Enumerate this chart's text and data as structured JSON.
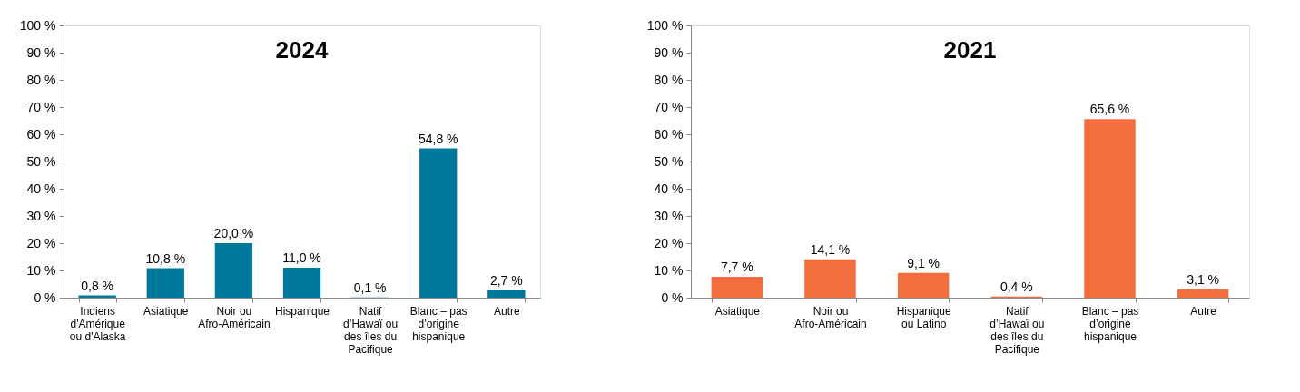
{
  "chart_data": [
    {
      "type": "bar",
      "title": "2024",
      "categories": [
        "Indiens d'Amérique ou d'Alaska",
        "Asiatique",
        "Noir ou Afro-Américain",
        "Hispanique",
        "Natif d’Hawaï ou des îles du Pacifique",
        "Blanc – pas d’origine hispanique",
        "Autre"
      ],
      "values": [
        0.8,
        10.8,
        20.0,
        11.0,
        0.1,
        54.8,
        2.7
      ],
      "color": "#00789c",
      "value_labels": [
        "0,8 %",
        "10,8 %",
        "20,0 %",
        "11,0 %",
        "0,1 %",
        "54,8 %",
        "2,7 %"
      ],
      "ylim": [
        0,
        100
      ],
      "yticks": [
        {
          "value": 0,
          "label": "0 %"
        },
        {
          "value": 10,
          "label": "10 %"
        },
        {
          "value": 20,
          "label": "20 %"
        },
        {
          "value": 30,
          "label": "30 %"
        },
        {
          "value": 40,
          "label": "40 %"
        },
        {
          "value": 50,
          "label": "50 %"
        },
        {
          "value": 60,
          "label": "60 %"
        },
        {
          "value": 70,
          "label": "70 %"
        },
        {
          "value": 80,
          "label": "80 %"
        },
        {
          "value": 90,
          "label": "90 %"
        },
        {
          "value": 100,
          "label": "100 %"
        }
      ],
      "grid": false
    },
    {
      "type": "bar",
      "title": "2021",
      "categories": [
        "Asiatique",
        "Noir ou Afro-Américain",
        "Hispanique ou Latino",
        "Natif d’Hawaï ou des îles du Pacifique",
        "Blanc – pas d’origine hispanique",
        "Autre"
      ],
      "values": [
        7.7,
        14.1,
        9.1,
        0.4,
        65.6,
        3.1
      ],
      "color": "#f26e3c",
      "value_labels": [
        "7,7 %",
        "14,1 %",
        "9,1 %",
        "0,4 %",
        "65,6 %",
        "3,1 %"
      ],
      "ylim": [
        0,
        100
      ],
      "yticks": [
        {
          "value": 0,
          "label": "0 %"
        },
        {
          "value": 10,
          "label": "10 %"
        },
        {
          "value": 20,
          "label": "20 %"
        },
        {
          "value": 30,
          "label": "30 %"
        },
        {
          "value": 40,
          "label": "40 %"
        },
        {
          "value": 50,
          "label": "50 %"
        },
        {
          "value": 60,
          "label": "60 %"
        },
        {
          "value": 70,
          "label": "70 %"
        },
        {
          "value": 80,
          "label": "80 %"
        },
        {
          "value": 90,
          "label": "90 %"
        },
        {
          "value": 100,
          "label": "100 %"
        }
      ],
      "grid": false
    }
  ]
}
